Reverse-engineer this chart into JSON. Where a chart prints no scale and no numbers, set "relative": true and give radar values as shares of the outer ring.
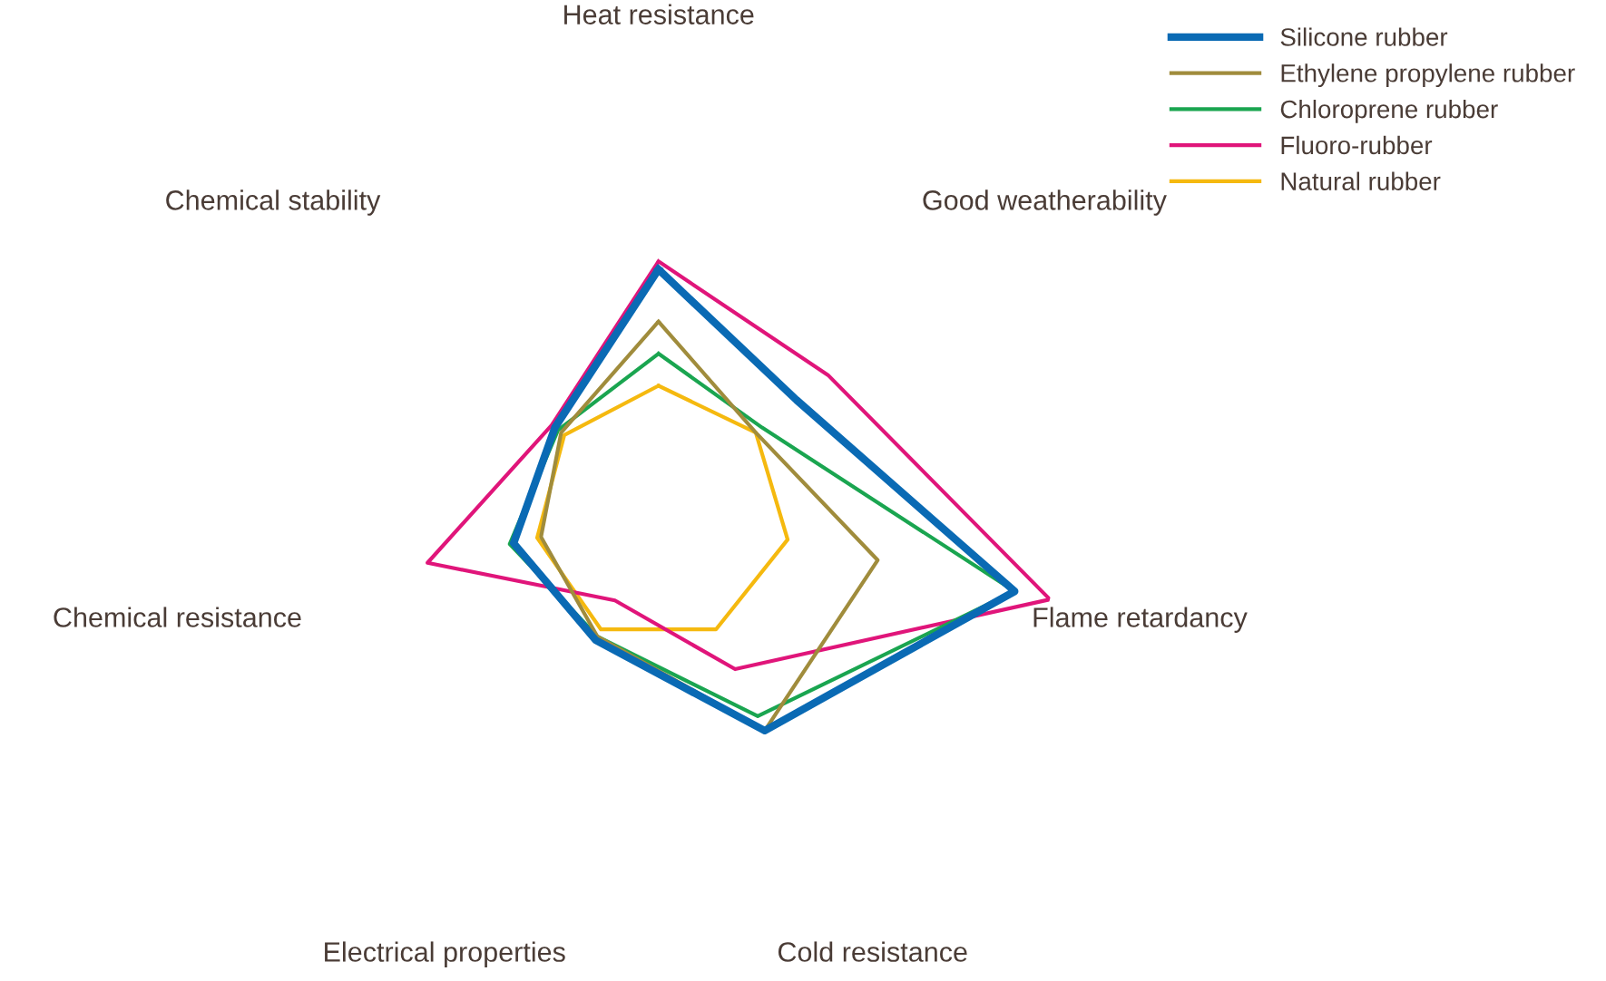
{
  "chart_data": {
    "type": "radar",
    "relative": true,
    "grid": false,
    "legend": "top right",
    "categories": [
      "Heat resistance",
      "Good weatherability",
      "Flame retardancy",
      "Cold resistance",
      "Electrical properties",
      "Chemical resistance",
      "Chemical stability"
    ],
    "series": [
      {
        "name": "Silicone rubber",
        "color": "#0a6ab4",
        "values": [
          0.6,
          0.44,
          0.91,
          0.61,
          0.36,
          0.37,
          0.33
        ]
      },
      {
        "name": "Ethylene propylene rubber",
        "color": "#a08c3c",
        "values": [
          0.47,
          0.31,
          0.56,
          0.61,
          0.35,
          0.3,
          0.31
        ]
      },
      {
        "name": "Chloroprene rubber",
        "color": "#1aa550",
        "values": [
          0.39,
          0.33,
          0.91,
          0.57,
          0.35,
          0.38,
          0.32
        ]
      },
      {
        "name": "Fluoro-rubber",
        "color": "#e0157a",
        "values": [
          0.62,
          0.54,
          1.0,
          0.44,
          0.25,
          0.59,
          0.34
        ]
      },
      {
        "name": "Natural rubber",
        "color": "#f5b90f",
        "values": [
          0.31,
          0.31,
          0.33,
          0.33,
          0.33,
          0.31,
          0.3
        ]
      }
    ]
  }
}
